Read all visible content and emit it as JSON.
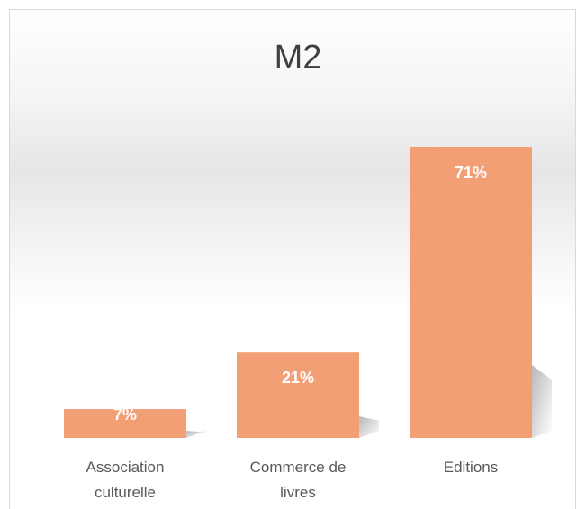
{
  "chart_data": {
    "type": "bar",
    "title": "M2",
    "categories": [
      "Association culturelle",
      "Commerce de livres",
      "Editions"
    ],
    "values": [
      7,
      21,
      71
    ],
    "value_labels": [
      "7%",
      "21%",
      "71%"
    ],
    "color": "#f29f76"
  }
}
